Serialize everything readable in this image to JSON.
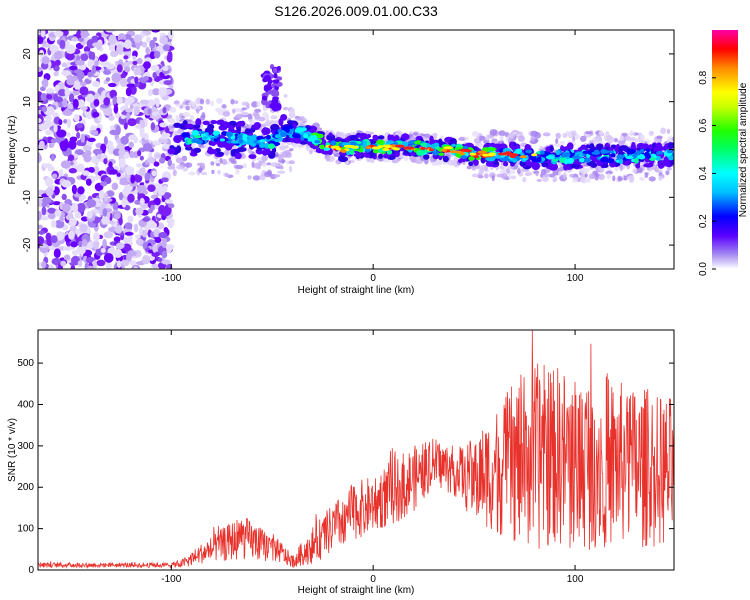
{
  "title": "S126.2026.009.01.00.C33",
  "chart_data": [
    {
      "type": "heatmap",
      "name": "spectrogram",
      "xlabel": "Height of straight line (km)",
      "ylabel": "Frequency (Hz)",
      "xlim": [
        -166,
        149
      ],
      "ylim": [
        -25,
        25
      ],
      "xticks": [
        -100,
        0,
        100
      ],
      "xtick_labels": [
        "-100",
        "0",
        "100"
      ],
      "yticks": [
        -20,
        -10,
        0,
        10,
        20
      ],
      "ytick_labels": [
        "-20",
        "-10",
        "0",
        "10",
        "20"
      ],
      "ridge": {
        "x": [
          -100,
          -90,
          -80,
          -70,
          -60,
          -50,
          -43,
          -35,
          -25,
          -15,
          -5,
          0,
          10,
          20,
          30,
          40,
          50,
          60,
          80,
          100,
          120,
          149
        ],
        "y": [
          3,
          2.5,
          2.5,
          2.2,
          2,
          1.5,
          4,
          3.5,
          1.5,
          0,
          1,
          0.5,
          0.5,
          0.5,
          0,
          0,
          -1,
          -1,
          -1.5,
          -1.5,
          -1.5,
          -1
        ]
      },
      "burst": {
        "x": -50,
        "y": 13
      },
      "colorbar": {
        "label": "Normalized spectral amplitude",
        "range": [
          0,
          1
        ],
        "ticks": [
          0,
          0.2,
          0.4,
          0.6,
          0.8
        ],
        "tick_labels": [
          "0.0",
          "0.2",
          "0.4",
          "0.6",
          "0.8"
        ]
      }
    },
    {
      "type": "line",
      "name": "snr",
      "xlabel": "Height of straight line (km)",
      "ylabel": "SNR (10 * v/v)",
      "xlim": [
        -166,
        149
      ],
      "ylim": [
        0,
        580
      ],
      "xticks": [
        -100,
        0,
        100
      ],
      "xtick_labels": [
        "-100",
        "0",
        "100"
      ],
      "yticks": [
        0,
        100,
        200,
        300,
        400,
        500
      ],
      "ytick_labels": [
        "0",
        "100",
        "200",
        "300",
        "400",
        "500"
      ],
      "color": "#e8312b",
      "envelope": {
        "x": [
          -166,
          -100,
          -95,
          -85,
          -75,
          -65,
          -55,
          -50,
          -45,
          -40,
          -30,
          -20,
          -10,
          0,
          10,
          20,
          30,
          40,
          50,
          60,
          70,
          80,
          90,
          100,
          110,
          120,
          130,
          140,
          149
        ],
        "mean": [
          12,
          12,
          15,
          40,
          60,
          80,
          60,
          55,
          40,
          20,
          60,
          100,
          140,
          160,
          190,
          220,
          260,
          240,
          220,
          240,
          260,
          270,
          280,
          260,
          270,
          260,
          250,
          240,
          240
        ],
        "spread": [
          6,
          6,
          10,
          25,
          40,
          55,
          40,
          35,
          25,
          15,
          45,
          60,
          70,
          70,
          80,
          80,
          60,
          60,
          100,
          150,
          200,
          230,
          220,
          220,
          220,
          200,
          200,
          190,
          180
        ]
      }
    }
  ]
}
